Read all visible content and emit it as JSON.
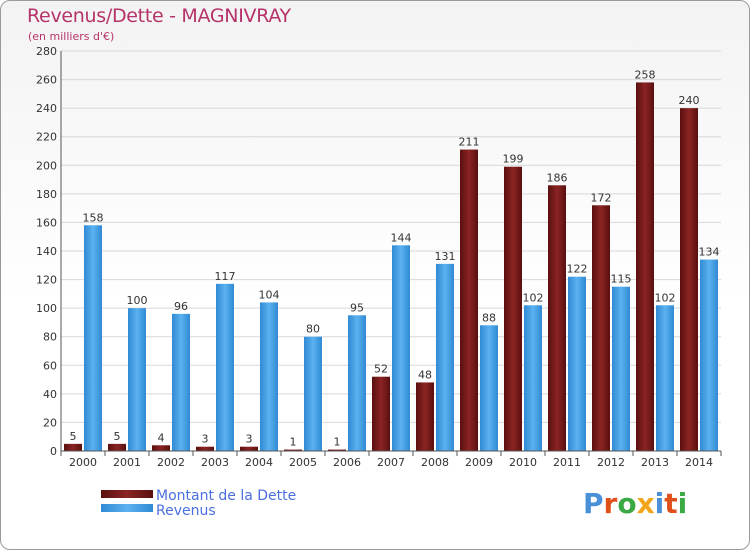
{
  "title": "Revenus/Dette - MAGNIVRAY",
  "subtitle": "(en milliers d'€)",
  "logo": {
    "text": "Proxiti",
    "colors": [
      "#4a90d9",
      "#e0501a",
      "#3aa843",
      "#f2a51a",
      "#4a90d9",
      "#e0501a",
      "#3aa843"
    ]
  },
  "colors": {
    "dette": "#7a1a1a",
    "revenus": "#4aa3e8",
    "title": "#b5336a"
  },
  "chart_data": {
    "type": "bar",
    "title": "Revenus/Dette - MAGNIVRAY",
    "subtitle": "(en milliers d'€)",
    "categories": [
      "2000",
      "2001",
      "2002",
      "2003",
      "2004",
      "2005",
      "2006",
      "2007",
      "2008",
      "2009",
      "2010",
      "2011",
      "2012",
      "2013",
      "2014"
    ],
    "series": [
      {
        "name": "Montant de la Dette",
        "values": [
          5,
          5,
          4,
          3,
          3,
          1,
          1,
          52,
          48,
          211,
          199,
          186,
          172,
          258,
          240
        ]
      },
      {
        "name": "Revenus",
        "values": [
          158,
          100,
          96,
          117,
          104,
          80,
          95,
          144,
          131,
          88,
          102,
          122,
          115,
          102,
          134
        ]
      }
    ],
    "ylim": [
      0,
      280
    ],
    "yticks": [
      0,
      20,
      40,
      60,
      80,
      100,
      120,
      140,
      160,
      180,
      200,
      220,
      240,
      260,
      280
    ],
    "grid": true,
    "legend_position": "bottom-left"
  }
}
